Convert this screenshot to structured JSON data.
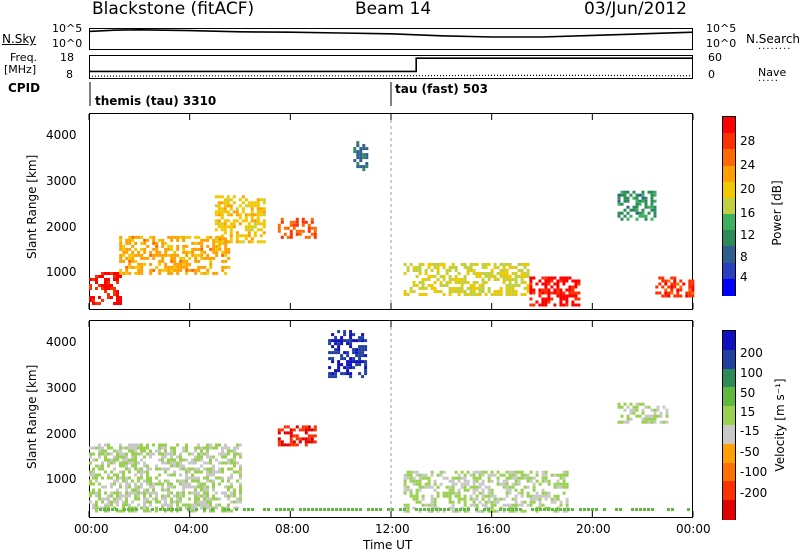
{
  "header": {
    "station": "Blackstone (fitACF)",
    "beam": "Beam 14",
    "date": "03/Jun/2012"
  },
  "top_panels": {
    "nsky_label": "N.Sky",
    "nsky_ticks": [
      "10^5",
      "10^0"
    ],
    "nsearch_label": "N.Search",
    "nsearch_ticks": [
      "10^5",
      "10^0"
    ],
    "freq_label_line1": "Freq.",
    "freq_label_line2": "[MHz]",
    "freq_ticks": [
      "18",
      "8"
    ],
    "nave_label": "Nave",
    "nave_ticks": [
      "60",
      "0"
    ],
    "cpid_label": "CPID",
    "cpid_modes": [
      "themis (tau) 3310",
      "tau (fast) 503"
    ]
  },
  "x_axis": {
    "title": "Time UT",
    "ticks": [
      "00:00",
      "04:00",
      "08:00",
      "12:00",
      "16:00",
      "20:00",
      "00:00"
    ]
  },
  "power_panel": {
    "ylabel": "Slant Range [km]",
    "yticks": [
      "4000",
      "3000",
      "2000",
      "1000"
    ],
    "colorbar_title": "Power [dB]",
    "colorbar_ticks": [
      "28",
      "24",
      "20",
      "16",
      "12",
      "8",
      "4"
    ],
    "colors": [
      "#ff0000",
      "#ff3000",
      "#ff6a00",
      "#ffa000",
      "#f0c800",
      "#c0d040",
      "#3cb060",
      "#2e8a58",
      "#2f5f8f",
      "#2a3fbf",
      "#0000ff"
    ]
  },
  "velocity_panel": {
    "ylabel": "Slant Range [km]",
    "yticks": [
      "4000",
      "3000",
      "2000",
      "1000"
    ],
    "colorbar_title": "Velocity [m s⁻¹]",
    "colorbar_ticks": [
      "200",
      "100",
      "50",
      "15",
      "-15",
      "-50",
      "-100",
      "-200"
    ],
    "colors": [
      "#1010c0",
      "#2040a0",
      "#2e8a58",
      "#60b840",
      "#9ad050",
      "#c8c8c8",
      "#ffa000",
      "#ff7000",
      "#ff3000",
      "#e00000"
    ]
  },
  "chart_data": [
    {
      "type": "line",
      "title": "Blackstone (fitACF)",
      "series": [
        {
          "name": "N.Sky",
          "x_hours": [
            0,
            1,
            2,
            4,
            6,
            8,
            10,
            12,
            14,
            16,
            18,
            20,
            22,
            24
          ],
          "values_log10": [
            4.4,
            4.7,
            4.8,
            4.6,
            4.3,
            4.2,
            4.0,
            3.8,
            3.3,
            3.0,
            3.0,
            3.4,
            3.8,
            4.2
          ]
        }
      ]
    },
    {
      "type": "line",
      "series": [
        {
          "name": "Freq. [MHz]",
          "x_hours": [
            0,
            13,
            13,
            24
          ],
          "values": [
            11,
            11,
            17,
            17
          ]
        },
        {
          "name": "Nave",
          "x_hours": [
            0,
            4,
            8,
            12,
            16,
            20,
            24
          ],
          "values": [
            5,
            6,
            6,
            6,
            7,
            7,
            6
          ]
        }
      ],
      "cpid": [
        {
          "label": "themis (tau) 3310",
          "start_hour": 0
        },
        {
          "label": "tau (fast) 503",
          "start_hour": 12
        }
      ]
    },
    {
      "type": "heatmap",
      "title": "Power [dB]",
      "xlabel": "Time UT",
      "ylabel": "Slant Range [km]",
      "xlim_hours": [
        0,
        24
      ],
      "ylim_km": [
        180,
        4500
      ],
      "colorbar_range": [
        0,
        30
      ],
      "regions": [
        {
          "start_hour": 0.0,
          "end_hour": 1.2,
          "range_km": [
            300,
            1000
          ],
          "value": 28
        },
        {
          "start_hour": 1.2,
          "end_hour": 5.5,
          "range_km": [
            1000,
            1800
          ],
          "value": 20
        },
        {
          "start_hour": 5.0,
          "end_hour": 7.0,
          "range_km": [
            1700,
            2700
          ],
          "value": 18
        },
        {
          "start_hour": 7.5,
          "end_hour": 9.0,
          "range_km": [
            1800,
            2200
          ],
          "value": 24
        },
        {
          "start_hour": 10.5,
          "end_hour": 11.0,
          "range_km": [
            3300,
            3900
          ],
          "value": 8
        },
        {
          "start_hour": 12.5,
          "end_hour": 17.5,
          "range_km": [
            500,
            1200
          ],
          "value": 16
        },
        {
          "start_hour": 17.5,
          "end_hour": 19.5,
          "range_km": [
            250,
            900
          ],
          "value": 28
        },
        {
          "start_hour": 21.0,
          "end_hour": 22.5,
          "range_km": [
            2200,
            2800
          ],
          "value": 10
        },
        {
          "start_hour": 22.5,
          "end_hour": 24.0,
          "range_km": [
            500,
            900
          ],
          "value": 26
        }
      ]
    },
    {
      "type": "heatmap",
      "title": "Velocity [m s⁻¹]",
      "xlabel": "Time UT",
      "ylabel": "Slant Range [km]",
      "xlim_hours": [
        0,
        24
      ],
      "ylim_km": [
        180,
        4500
      ],
      "colorbar_range": [
        -250,
        250
      ],
      "regions": [
        {
          "start_hour": 0.0,
          "end_hour": 6.0,
          "range_km": [
            300,
            1800
          ],
          "value": 0
        },
        {
          "start_hour": 7.5,
          "end_hour": 9.0,
          "range_km": [
            1800,
            2200
          ],
          "value": -200
        },
        {
          "start_hour": 9.5,
          "end_hour": 11.0,
          "range_km": [
            3300,
            4300
          ],
          "value": 200
        },
        {
          "start_hour": 12.5,
          "end_hour": 19.0,
          "range_km": [
            300,
            1200
          ],
          "value": 0
        },
        {
          "start_hour": 21.0,
          "end_hour": 23.0,
          "range_km": [
            2300,
            2700
          ],
          "value": 0
        }
      ]
    }
  ]
}
